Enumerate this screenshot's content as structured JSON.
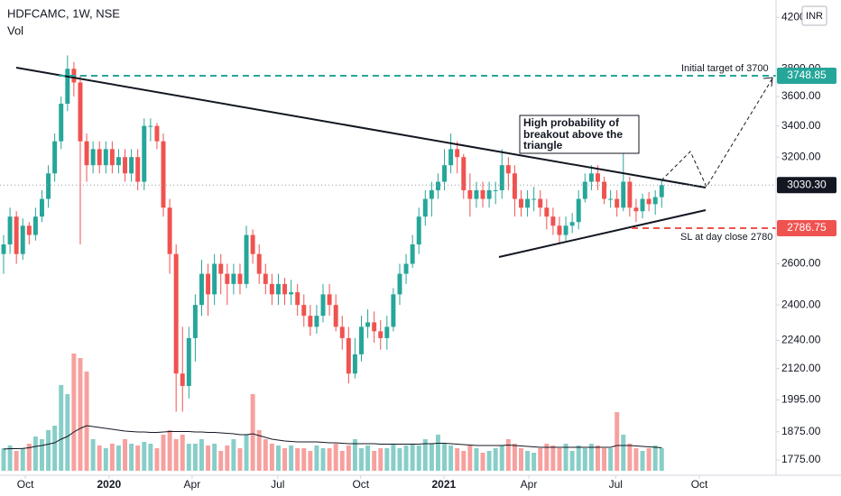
{
  "chart_data": {
    "type": "candlestick",
    "title": "HDFCAMC, 1W, NSE",
    "volume_title": "Vol",
    "currency": "INR",
    "log_scale": true,
    "grid": false,
    "up_color": "#26a69a",
    "down_color": "#ef5350",
    "ma_color": "#131722",
    "ylim": [
      1723,
      4344
    ],
    "yticks": [
      {
        "value": 1775,
        "label": "1775.00"
      },
      {
        "value": 1875,
        "label": "1875.00"
      },
      {
        "value": 1995,
        "label": "1995.00"
      },
      {
        "value": 2120,
        "label": "2120.00"
      },
      {
        "value": 2240,
        "label": "2240.00"
      },
      {
        "value": 2400,
        "label": "2400.00"
      },
      {
        "value": 2600,
        "label": "2600.00"
      },
      {
        "value": 3200,
        "label": "3200.00"
      },
      {
        "value": 3400,
        "label": "3400.00"
      },
      {
        "value": 3600,
        "label": "3600.00"
      },
      {
        "value": 3800,
        "label": "3800.00"
      },
      {
        "value": 4200,
        "label": "4200.00"
      }
    ],
    "xlim": [
      -0.565,
      120.9
    ],
    "xticks": [
      {
        "value": 3.4,
        "label": "Oct"
      },
      {
        "value": 16.5,
        "label": "2020"
      },
      {
        "value": 29.5,
        "label": "Apr"
      },
      {
        "value": 42.9,
        "label": "Jul"
      },
      {
        "value": 55.9,
        "label": "Oct"
      },
      {
        "value": 68.9,
        "label": "2021"
      },
      {
        "value": 82.2,
        "label": "Apr"
      },
      {
        "value": 95.8,
        "label": "Jul"
      },
      {
        "value": 108.9,
        "label": "Oct"
      }
    ],
    "vlim": [
      0,
      4000000
    ],
    "open": [
      2650,
      2700,
      2850,
      2650,
      2800,
      2750,
      2850,
      2950,
      3100,
      3300,
      3550,
      3800,
      3700,
      3300,
      3150,
      3250,
      3150,
      3250,
      3150,
      3200,
      3100,
      3200,
      3050,
      3400,
      3400,
      3300,
      2900,
      2650,
      2100,
      2050,
      2250,
      2400,
      2550,
      2450,
      2600,
      2550,
      2500,
      2550,
      2500,
      2750,
      2650,
      2550,
      2500,
      2450,
      2500,
      2450,
      2460,
      2400,
      2350,
      2300,
      2350,
      2450,
      2400,
      2300,
      2250,
      2100,
      2180,
      2300,
      2320,
      2280,
      2250,
      2300,
      2450,
      2550,
      2600,
      2700,
      2850,
      2950,
      3000,
      3050,
      3150,
      3250,
      3200,
      3000,
      2950,
      3000,
      2950,
      3000,
      3000,
      3150,
      3100,
      2950,
      2900,
      2950,
      2950,
      2900,
      2850,
      2800,
      2750,
      2800,
      2820,
      2950,
      3050,
      3100,
      3050,
      2950,
      2950,
      2900,
      3050,
      2900,
      2880,
      2950,
      2920,
      2960
    ],
    "high": [
      2750,
      2900,
      2880,
      2840,
      2820,
      2900,
      3000,
      3150,
      3350,
      3600,
      3900,
      3850,
      3750,
      3350,
      3300,
      3300,
      3300,
      3300,
      3250,
      3250,
      3250,
      3250,
      3450,
      3450,
      3420,
      3350,
      2950,
      2700,
      2300,
      2300,
      2450,
      2620,
      2600,
      2650,
      2650,
      2600,
      2600,
      2600,
      2800,
      2780,
      2700,
      2600,
      2550,
      2550,
      2530,
      2520,
      2500,
      2450,
      2400,
      2400,
      2500,
      2500,
      2450,
      2350,
      2300,
      2250,
      2350,
      2380,
      2370,
      2330,
      2350,
      2480,
      2600,
      2650,
      2750,
      2900,
      3000,
      3050,
      3100,
      3250,
      3350,
      3300,
      3220,
      3100,
      3050,
      3050,
      3050,
      3050,
      3250,
      3200,
      3150,
      3000,
      3000,
      3020,
      3000,
      2950,
      2900,
      2850,
      2850,
      2870,
      3000,
      3100,
      3150,
      3150,
      3080,
      3000,
      3000,
      3300,
      3080,
      2950,
      2980,
      2990,
      3000,
      3060
    ],
    "low": [
      2550,
      2650,
      2600,
      2620,
      2700,
      2720,
      2820,
      2900,
      3050,
      3250,
      3500,
      3600,
      2700,
      3050,
      3100,
      3100,
      3100,
      3100,
      3100,
      3050,
      3050,
      3000,
      3000,
      3300,
      3250,
      2850,
      2550,
      1950,
      1950,
      2000,
      2150,
      2350,
      2350,
      2400,
      2450,
      2400,
      2450,
      2450,
      2480,
      2600,
      2500,
      2450,
      2400,
      2400,
      2400,
      2400,
      2350,
      2300,
      2260,
      2270,
      2320,
      2350,
      2280,
      2200,
      2060,
      2080,
      2150,
      2250,
      2230,
      2200,
      2200,
      2280,
      2400,
      2500,
      2580,
      2650,
      2800,
      2850,
      2950,
      3000,
      3100,
      3100,
      2950,
      2850,
      2900,
      2900,
      2900,
      2920,
      2950,
      3000,
      2850,
      2850,
      2850,
      2880,
      2850,
      2780,
      2750,
      2700,
      2720,
      2760,
      2780,
      2930,
      3000,
      3000,
      2920,
      2900,
      2850,
      2880,
      2850,
      2820,
      2840,
      2880,
      2860,
      2900
    ],
    "close": [
      2700,
      2850,
      2650,
      2800,
      2750,
      2850,
      2950,
      3100,
      3300,
      3550,
      3800,
      3700,
      3300,
      3150,
      3250,
      3150,
      3250,
      3150,
      3200,
      3100,
      3200,
      3050,
      3400,
      3400,
      3300,
      2900,
      2650,
      2100,
      2050,
      2250,
      2400,
      2550,
      2450,
      2600,
      2550,
      2500,
      2550,
      2500,
      2750,
      2650,
      2550,
      2500,
      2450,
      2500,
      2450,
      2460,
      2400,
      2350,
      2300,
      2350,
      2450,
      2400,
      2300,
      2250,
      2100,
      2180,
      2300,
      2320,
      2280,
      2250,
      2300,
      2450,
      2550,
      2600,
      2700,
      2850,
      2950,
      3000,
      3050,
      3150,
      3250,
      3200,
      3000,
      2950,
      3000,
      2950,
      3000,
      3000,
      3150,
      3100,
      2950,
      2900,
      2950,
      2950,
      2900,
      2850,
      2800,
      2750,
      2800,
      2820,
      2950,
      3050,
      3100,
      3050,
      2950,
      2950,
      2900,
      3050,
      2900,
      2880,
      2950,
      2920,
      2960,
      3030.3
    ],
    "volume": [
      500000,
      560000,
      440000,
      500000,
      600000,
      760000,
      700000,
      900000,
      1000000,
      1900000,
      1700000,
      2600000,
      2500000,
      2200000,
      700000,
      560000,
      500000,
      600000,
      560000,
      700000,
      600000,
      560000,
      640000,
      600000,
      500000,
      800000,
      900000,
      700000,
      800000,
      600000,
      600000,
      700000,
      560000,
      600000,
      440000,
      560000,
      700000,
      500000,
      800000,
      1700000,
      900000,
      700000,
      600000,
      560000,
      500000,
      560000,
      500000,
      500000,
      440000,
      560000,
      500000,
      500000,
      600000,
      440000,
      560000,
      700000,
      500000,
      560000,
      440000,
      500000,
      500000,
      600000,
      500000,
      560000,
      600000,
      560000,
      700000,
      600000,
      800000,
      600000,
      560000,
      500000,
      440000,
      560000,
      500000,
      400000,
      440000,
      500000,
      560000,
      700000,
      600000,
      500000,
      440000,
      400000,
      500000,
      600000,
      560000,
      500000,
      600000,
      440000,
      560000,
      500000,
      600000,
      560000,
      500000,
      500000,
      1300000,
      800000,
      600000,
      500000,
      440000,
      500000,
      560000,
      500000
    ],
    "volume_ma": [
      480000,
      490000,
      490000,
      495000,
      510000,
      540000,
      560000,
      590000,
      620000,
      700000,
      760000,
      860000,
      940000,
      1000000,
      980000,
      960000,
      940000,
      920000,
      900000,
      880000,
      870000,
      860000,
      860000,
      850000,
      850000,
      860000,
      870000,
      870000,
      870000,
      870000,
      860000,
      860000,
      850000,
      850000,
      840000,
      830000,
      820000,
      800000,
      800000,
      820000,
      780000,
      740000,
      700000,
      680000,
      660000,
      650000,
      640000,
      640000,
      640000,
      640000,
      630000,
      620000,
      620000,
      610000,
      600000,
      600000,
      600000,
      600000,
      600000,
      590000,
      590000,
      590000,
      590000,
      590000,
      590000,
      590000,
      600000,
      600000,
      610000,
      610000,
      600000,
      590000,
      580000,
      570000,
      560000,
      560000,
      560000,
      560000,
      560000,
      570000,
      560000,
      550000,
      540000,
      530000,
      520000,
      520000,
      520000,
      520000,
      520000,
      520000,
      520000,
      520000,
      520000,
      520000,
      520000,
      520000,
      560000,
      560000,
      560000,
      550000,
      540000,
      530000,
      520000,
      510000
    ],
    "last_price": {
      "value": 3030.3,
      "label": "3030.30"
    },
    "target_price": 3748.85,
    "stop_price": 2786.75,
    "target_note": "Initial target of 3700",
    "stop_note": "SL at day close 2780",
    "note_lines": [
      "High probability of",
      "breakout above the",
      "triangle"
    ]
  }
}
